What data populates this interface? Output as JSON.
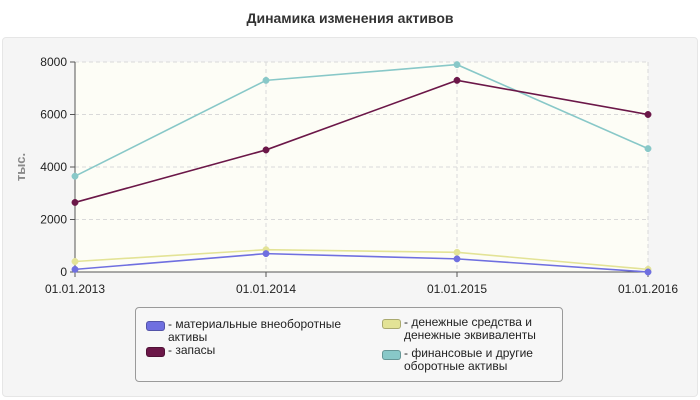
{
  "chart_data": {
    "type": "line",
    "title": "Динамика изменения активов",
    "ylabel": "тыс.",
    "xlabel": "",
    "categories": [
      "01.01.2013",
      "01.01.2014",
      "01.01.2015",
      "01.01.2016"
    ],
    "ylim": [
      0,
      8000
    ],
    "yticks": [
      0,
      2000,
      4000,
      6000,
      8000
    ],
    "grid": true,
    "legend_position": "bottom",
    "series": [
      {
        "name": "- материальные внеоборотные активы",
        "color": "#6f6fe0",
        "values": [
          100,
          700,
          500,
          0
        ]
      },
      {
        "name": "- запасы",
        "color": "#6b1748",
        "values": [
          2650,
          4650,
          7300,
          6000
        ]
      },
      {
        "name": "- денежные средства и денежные эквиваленты",
        "color": "#e3e396",
        "values": [
          400,
          850,
          750,
          100
        ]
      },
      {
        "name": "- финансовые и другие оборотные активы",
        "color": "#88c8c8",
        "values": [
          3650,
          7300,
          7900,
          4700
        ]
      }
    ]
  }
}
